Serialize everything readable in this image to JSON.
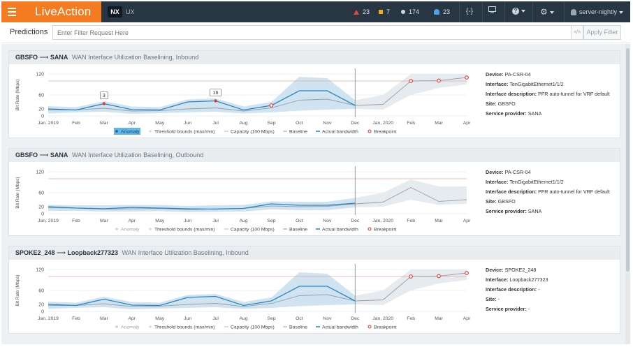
{
  "topbar": {
    "brand": "LiveAction",
    "mode_active": "NX",
    "mode_inactive": "UX",
    "alerts": {
      "critical": "23",
      "warning": "7",
      "info": "174",
      "notifications": "23"
    },
    "dashboard_toggle": "{-}",
    "user": "server-nightly"
  },
  "filter": {
    "title": "Predictions",
    "placeholder": "Enter Filter Request Here",
    "code_label": "</>",
    "apply_label": "Apply Filter"
  },
  "colors": {
    "accent": "#f47b20",
    "navbar": "#283643",
    "actual": "#2a86c2",
    "baseline": "#9aa0a6",
    "band_hist": "#cfe3f1",
    "band_pred": "#e6ebef",
    "capacity": "#e8a7a0",
    "breakpoint": "#e53935"
  },
  "shared_axes": {
    "y_label": "Bit Rate (Mbps)",
    "y_ticks": [
      "0",
      "20",
      "60",
      "120"
    ],
    "x_ticks": [
      "Jan, 2019",
      "Feb",
      "Mar",
      "Apr",
      "May",
      "Jun",
      "Jul",
      "Aug",
      "Sep",
      "Oct",
      "Nov",
      "Dec",
      "Jan, 2020",
      "Feb",
      "Mar",
      "Apr"
    ],
    "legend": {
      "anomaly": "Anomaly",
      "threshold": "Threshold bounds (max/min)",
      "capacity": "Capacity (100 Mbps)",
      "baseline": "Baseline",
      "actual": "Actual bandwidth",
      "breakpoint": "Breakpoint"
    }
  },
  "panels": [
    {
      "from": "GBSFO",
      "to": "SANA",
      "subtitle": "WAN Interface Utilization Baselining, Inbound",
      "device": "PA-CSR-04",
      "interface": "TenGigabitEthernet1/1/2",
      "interface_description": "PFR auto-tunnel for VRF default",
      "site": "GBSFO",
      "service_provider": "SANA"
    },
    {
      "from": "GBSFO",
      "to": "SANA",
      "subtitle": "WAN Interface Utilization Baselining, Outbound",
      "device": "PA-CSR-04",
      "interface": "TenGigabitEthernet1/1/2",
      "interface_description": "PFR auto-tunnel for VRF default",
      "site": "GBSFO",
      "service_provider": "SANA"
    },
    {
      "from": "SPOKE2_248",
      "to": "Loopback277323",
      "subtitle": "WAN Interface Utilization Baselining, Inbound",
      "device": "SPOKE2_248",
      "interface": "Loopback277323",
      "interface_description": "-",
      "site": "-",
      "service_provider": "-"
    }
  ],
  "info_labels": {
    "device": "Device:",
    "interface": "Interface:",
    "interface_description": "Interface description:",
    "site": "Site:",
    "service_provider": "Service provider:"
  },
  "chart_data": [
    {
      "type": "line",
      "ylabel": "Bit Rate (Mbps)",
      "ylim": [
        0,
        120
      ],
      "x": [
        "Jan, 2019",
        "Feb",
        "Mar",
        "Apr",
        "May",
        "Jun",
        "Jul",
        "Aug",
        "Sep",
        "Oct",
        "Nov",
        "Dec",
        "Jan, 2020",
        "Feb",
        "Mar",
        "Apr"
      ],
      "capacity": 100,
      "series": [
        {
          "name": "Actual bandwidth",
          "values": [
            20,
            17,
            35,
            18,
            17,
            40,
            43,
            17,
            30,
            72,
            72,
            30,
            null,
            null,
            null,
            null
          ]
        },
        {
          "name": "Baseline",
          "values": [
            17,
            17,
            22,
            14,
            15,
            20,
            23,
            14,
            23,
            45,
            48,
            30,
            33,
            100,
            101,
            110
          ]
        },
        {
          "name": "Threshold bounds (max/min)",
          "upper": [
            28,
            25,
            42,
            27,
            25,
            47,
            50,
            27,
            40,
            112,
            108,
            45,
            60,
            120,
            120,
            120
          ],
          "lower": [
            7,
            10,
            12,
            6,
            8,
            10,
            12,
            7,
            10,
            15,
            18,
            20,
            18,
            60,
            80,
            90
          ]
        }
      ],
      "anomalies": [
        {
          "x": "Mar",
          "label": "3"
        },
        {
          "x": "Jul",
          "label": "16"
        }
      ],
      "breakpoints": [
        {
          "x": "Sep",
          "y": 30
        },
        {
          "x": "Feb",
          "y": 100
        },
        {
          "x": "Mar",
          "y": 101
        },
        {
          "x": "Apr",
          "y": 110
        }
      ]
    },
    {
      "type": "line",
      "ylabel": "Bit Rate (Mbps)",
      "ylim": [
        0,
        120
      ],
      "x": [
        "Jan, 2019",
        "Feb",
        "Mar",
        "Apr",
        "May",
        "Jun",
        "Jul",
        "Aug",
        "Sep",
        "Oct",
        "Nov",
        "Dec",
        "Jan, 2020",
        "Feb",
        "Mar",
        "Apr"
      ],
      "capacity": 100,
      "series": [
        {
          "name": "Actual bandwidth",
          "values": [
            20,
            16,
            14,
            18,
            16,
            14,
            13,
            15,
            28,
            24,
            24,
            30,
            null,
            null,
            null,
            null
          ]
        },
        {
          "name": "Baseline",
          "values": [
            17,
            16,
            13,
            14,
            15,
            11,
            14,
            15,
            22,
            20,
            21,
            28,
            33,
            75,
            35,
            40
          ]
        },
        {
          "name": "Threshold bounds (max/min)",
          "upper": [
            25,
            24,
            24,
            25,
            25,
            22,
            24,
            25,
            35,
            34,
            34,
            45,
            60,
            98,
            78,
            78
          ],
          "lower": [
            8,
            8,
            6,
            6,
            7,
            4,
            5,
            6,
            12,
            10,
            10,
            18,
            20,
            40,
            25,
            28
          ]
        }
      ],
      "anomalies": [],
      "breakpoints": []
    },
    {
      "type": "line",
      "ylabel": "Bit Rate (Mbps)",
      "ylim": [
        0,
        120
      ],
      "x": [
        "Jan, 2019",
        "Feb",
        "Mar",
        "Apr",
        "May",
        "Jun",
        "Jul",
        "Aug",
        "Sep",
        "Oct",
        "Nov",
        "Dec",
        "Jan, 2020",
        "Feb",
        "Mar",
        "Apr"
      ],
      "capacity": 100,
      "series": [
        {
          "name": "Actual bandwidth",
          "values": [
            20,
            17,
            35,
            18,
            17,
            40,
            43,
            17,
            30,
            72,
            72,
            30,
            null,
            null,
            null,
            null
          ]
        },
        {
          "name": "Baseline",
          "values": [
            17,
            17,
            22,
            14,
            15,
            20,
            23,
            14,
            23,
            45,
            48,
            30,
            33,
            100,
            101,
            110
          ]
        },
        {
          "name": "Threshold bounds (max/min)",
          "upper": [
            28,
            25,
            42,
            27,
            25,
            47,
            50,
            27,
            40,
            112,
            108,
            45,
            60,
            120,
            120,
            120
          ],
          "lower": [
            7,
            10,
            12,
            6,
            8,
            10,
            12,
            7,
            10,
            15,
            18,
            20,
            18,
            60,
            80,
            90
          ]
        }
      ],
      "anomalies": [],
      "breakpoints": [
        {
          "x": "Feb",
          "y": 100
        },
        {
          "x": "Mar",
          "y": 101
        },
        {
          "x": "Apr",
          "y": 110
        }
      ]
    }
  ]
}
